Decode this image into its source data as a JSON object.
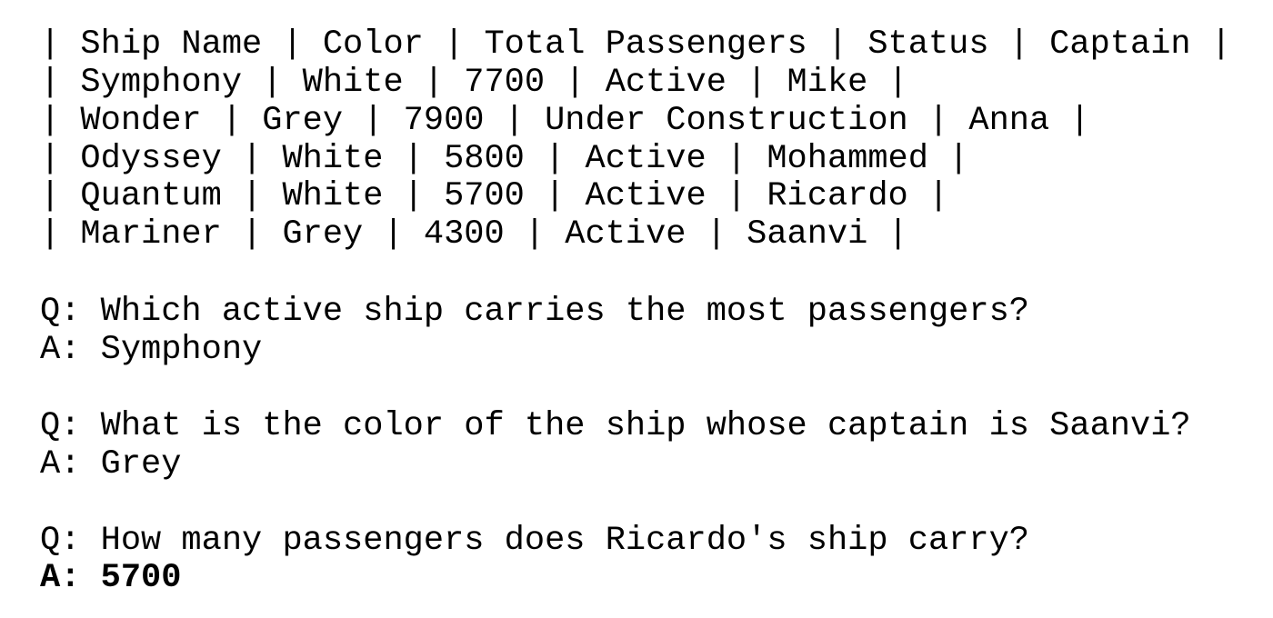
{
  "table": {
    "header": "| Ship Name | Color | Total Passengers | Status | Captain |",
    "rows": [
      "| Symphony | White | 7700 | Active | Mike |",
      "| Wonder | Grey | 7900 | Under Construction | Anna |",
      "| Odyssey | White | 5800 | Active | Mohammed |",
      "| Quantum | White | 5700 | Active | Ricardo |",
      "| Mariner | Grey | 4300 | Active | Saanvi |"
    ]
  },
  "qa": [
    {
      "question": "Q: Which active ship carries the most passengers?",
      "answer": "A: Symphony"
    },
    {
      "question": "Q: What is the color of the ship whose captain is Saanvi?",
      "answer": "A: Grey"
    },
    {
      "question": "Q: How many passengers does Ricardo's ship carry?",
      "answer": "A: 5700"
    }
  ]
}
